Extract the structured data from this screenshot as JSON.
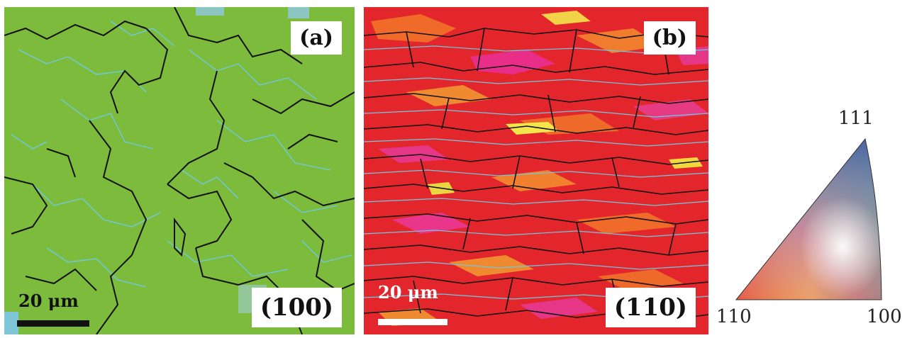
{
  "panels": [
    {
      "id": "a",
      "label": "(a)",
      "orientation": "(100)",
      "scale_label": "20 μm",
      "scale_bar_color": "#111111",
      "base_color": "#7dbb3c"
    },
    {
      "id": "b",
      "label": "(b)",
      "orientation": "(110)",
      "scale_label": "20 μm",
      "scale_bar_color": "#ffffff",
      "base_color": "#e3262b"
    }
  ],
  "legend": {
    "corners": {
      "top": "111",
      "bottom_left": "110",
      "bottom_right": "100"
    },
    "colors": {
      "c111": "#1f3e9a",
      "c110": "#e31e24",
      "c100": "#3ea635",
      "center": "#ffffff"
    }
  },
  "colors": {
    "high_angle_boundary": "#111111",
    "low_angle_boundary": "#6fc9e0"
  }
}
